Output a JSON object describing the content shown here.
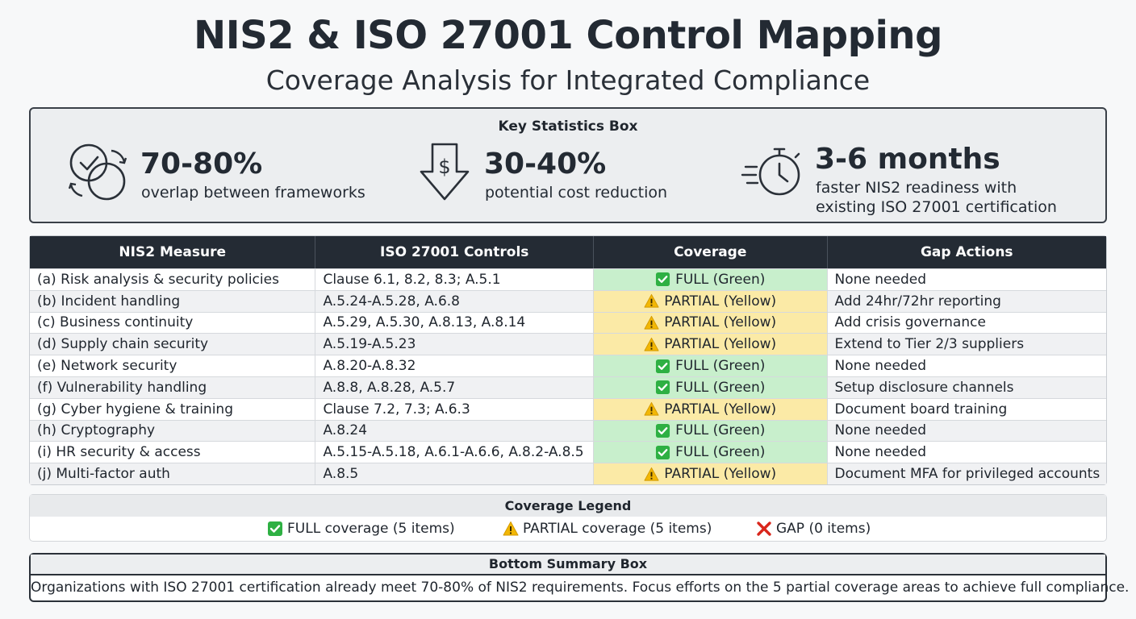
{
  "header": {
    "title": "NIS2 & ISO 27001 Control Mapping",
    "subtitle": "Coverage Analysis for Integrated Compliance"
  },
  "stats": {
    "heading": "Key Statistics Box",
    "items": [
      {
        "icon": "overlap-circles-icon",
        "value": "70-80%",
        "line1": "overlap between frameworks",
        "line2": ""
      },
      {
        "icon": "dollar-down-arrow-icon",
        "value": "30-40%",
        "line1": "potential cost reduction",
        "line2": ""
      },
      {
        "icon": "fast-stopwatch-icon",
        "value": "3-6 months",
        "line1": "faster NIS2 readiness with",
        "line2": "existing ISO 27001 certification"
      }
    ]
  },
  "table": {
    "headers": [
      "NIS2 Measure",
      "ISO 27001 Controls",
      "Coverage",
      "Gap Actions"
    ],
    "rows": [
      {
        "measure": "(a) Risk analysis & security policies",
        "controls": "Clause 6.1, 8.2, 8.3; A.5.1",
        "coverage": "FULL (Green)",
        "status": "full",
        "action": "None needed"
      },
      {
        "measure": "(b) Incident handling",
        "controls": "A.5.24-A.5.28, A.6.8",
        "coverage": "PARTIAL (Yellow)",
        "status": "partial",
        "action": "Add 24hr/72hr reporting"
      },
      {
        "measure": "(c) Business continuity",
        "controls": "A.5.29, A.5.30, A.8.13, A.8.14",
        "coverage": "PARTIAL (Yellow)",
        "status": "partial",
        "action": "Add crisis governance"
      },
      {
        "measure": "(d) Supply chain security",
        "controls": "A.5.19-A.5.23",
        "coverage": "PARTIAL (Yellow)",
        "status": "partial",
        "action": "Extend to Tier 2/3 suppliers"
      },
      {
        "measure": "(e) Network security",
        "controls": "A.8.20-A.8.32",
        "coverage": "FULL (Green)",
        "status": "full",
        "action": "None needed"
      },
      {
        "measure": "(f) Vulnerability handling",
        "controls": "A.8.8, A.8.28, A.5.7",
        "coverage": "FULL (Green)",
        "status": "full",
        "action": "Setup disclosure channels"
      },
      {
        "measure": "(g) Cyber hygiene & training",
        "controls": "Clause 7.2, 7.3; A.6.3",
        "coverage": "PARTIAL (Yellow)",
        "status": "partial",
        "action": "Document board training"
      },
      {
        "measure": "(h) Cryptography",
        "controls": "A.8.24",
        "coverage": "FULL (Green)",
        "status": "full",
        "action": "None needed"
      },
      {
        "measure": "(i) HR security & access",
        "controls": "A.5.15-A.5.18, A.6.1-A.6.6, A.8.2-A.8.5",
        "coverage": "FULL (Green)",
        "status": "full",
        "action": "None needed"
      },
      {
        "measure": "(j) Multi-factor auth",
        "controls": "A.8.5",
        "coverage": "PARTIAL (Yellow)",
        "status": "partial",
        "action": "Document MFA for privileged accounts"
      }
    ]
  },
  "legend": {
    "heading": "Coverage Legend",
    "full": "FULL coverage (5 items)",
    "partial": "PARTIAL coverage (5 items)",
    "gap": "GAP (0 items)"
  },
  "summary": {
    "heading": "Bottom Summary Box",
    "text": "Organizations with ISO 27001 certification already meet 70-80% of NIS2 requirements. Focus efforts on the 5 partial coverage areas to achieve full compliance."
  },
  "colors": {
    "full_bg": "#c8efcc",
    "partial_bg": "#fbeaa6",
    "check_green": "#2eb043",
    "warn_yellow": "#f2b705",
    "gap_red": "#d9261c",
    "header_dark": "#242b34"
  }
}
